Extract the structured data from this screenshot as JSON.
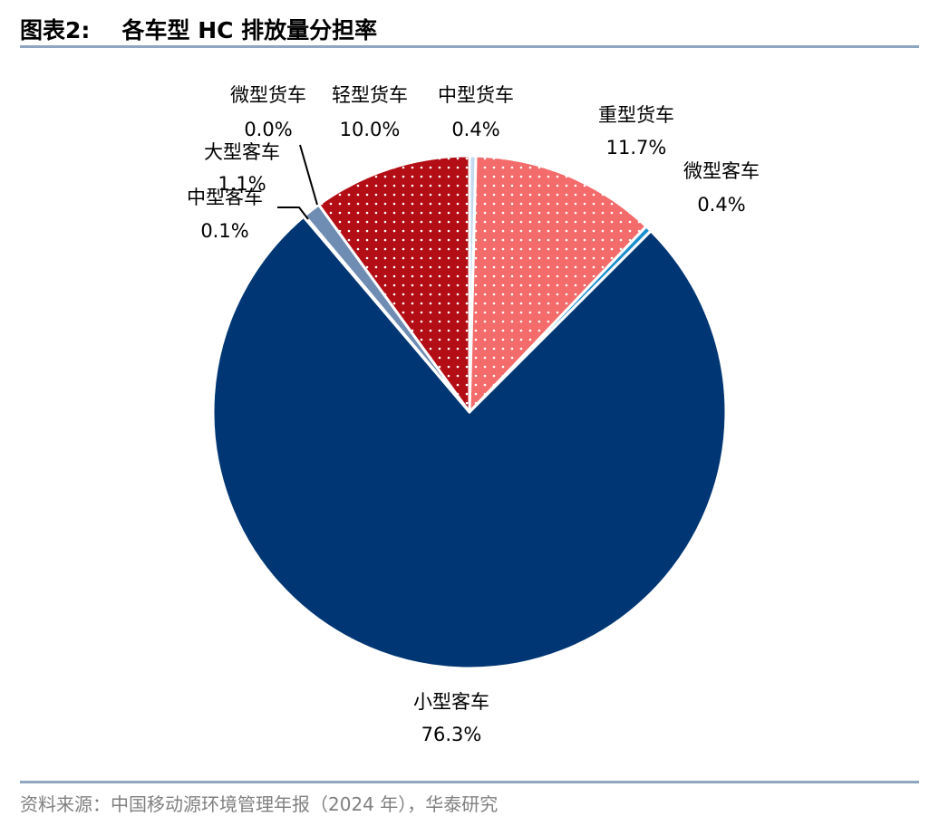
{
  "figure": {
    "label": "图表2:",
    "title": "各车型 HC 排放量分担率"
  },
  "source": "资料来源：中国移动源环境管理年报（2024 年），华泰研究",
  "chart_data": {
    "type": "pie",
    "start_angle_deg": 0,
    "direction": "clockwise",
    "slices": [
      {
        "name": "中型货车",
        "value": 0.4,
        "label": "0.4%",
        "color": "#c5d9f1",
        "pattern": null
      },
      {
        "name": "重型货车",
        "value": 11.7,
        "label": "11.7%",
        "color": "#f46b6b",
        "pattern": "dots"
      },
      {
        "name": "微型客车",
        "value": 0.4,
        "label": "0.4%",
        "color": "#1b8fcf",
        "pattern": null
      },
      {
        "name": "小型客车",
        "value": 76.3,
        "label": "76.3%",
        "color": "#003673",
        "pattern": null
      },
      {
        "name": "中型客车",
        "value": 0.1,
        "label": "0.1%",
        "color": "#2e6bb0",
        "pattern": null
      },
      {
        "name": "大型客车",
        "value": 1.1,
        "label": "1.1%",
        "color": "#6f8db3",
        "pattern": null
      },
      {
        "name": "微型货车",
        "value": 0.0,
        "label": "0.0%",
        "color": "#b7c9dd",
        "pattern": null
      },
      {
        "name": "轻型货车",
        "value": 10.0,
        "label": "10.0%",
        "color": "#b30d15",
        "pattern": "dots"
      }
    ]
  }
}
